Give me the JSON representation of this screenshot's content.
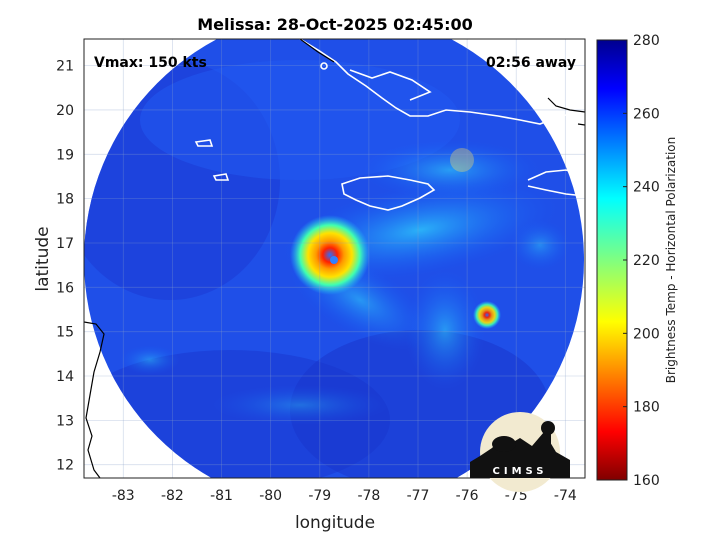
{
  "title": "Melissa: 28-Oct-2025 02:45:00",
  "annotations": {
    "vmax": "Vmax: 150 kts",
    "away": "02:56 away"
  },
  "axes": {
    "xlabel": "longitude",
    "ylabel": "latitude",
    "xlim": [
      -83.8,
      -73.6
    ],
    "ylim": [
      11.7,
      21.6
    ],
    "xticks": [
      -83,
      -82,
      -81,
      -80,
      -79,
      -78,
      -77,
      -76,
      -75,
      -74
    ],
    "yticks": [
      12,
      13,
      14,
      15,
      16,
      17,
      18,
      19,
      20,
      21
    ],
    "grid": true
  },
  "colorbar": {
    "label": "Brightness Temp - Horizontal Polarization",
    "range": [
      160,
      280
    ],
    "ticks": [
      280,
      260,
      240,
      220,
      200,
      180,
      160
    ],
    "colormap": "jet"
  },
  "storm": {
    "center_lon": -78.6,
    "center_lat": 16.65
  },
  "logo": {
    "text": "CIMSS"
  }
}
